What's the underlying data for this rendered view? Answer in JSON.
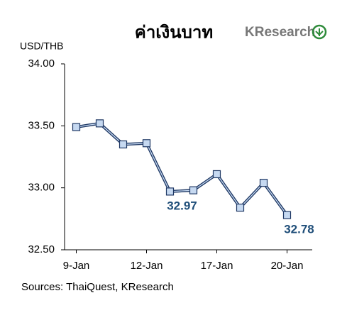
{
  "chart_data": {
    "type": "line",
    "title": "ค่าเงินบาท",
    "brand": "KResearch",
    "ylabel": "USD/THB",
    "source": "Sources: ThaiQuest, KResearch",
    "categories": [
      "9-Jan",
      null,
      null,
      "12-Jan",
      null,
      null,
      "17-Jan",
      null,
      null,
      "20-Jan"
    ],
    "values": [
      33.49,
      33.52,
      33.35,
      33.36,
      32.97,
      32.98,
      33.11,
      32.84,
      33.04,
      32.78
    ],
    "value_labels": [
      null,
      null,
      null,
      null,
      "32.97",
      null,
      null,
      null,
      null,
      "32.78"
    ],
    "color": "#1f3864",
    "marker_color": "#c6d9f1",
    "label_color": "#1f4e79",
    "ylim": [
      32.5,
      34.0
    ],
    "yticks": [
      {
        "value": 32.5,
        "label": "32.50"
      },
      {
        "value": 33.0,
        "label": "33.00"
      },
      {
        "value": 33.5,
        "label": "33.50"
      },
      {
        "value": 34.0,
        "label": "34.00"
      }
    ]
  }
}
